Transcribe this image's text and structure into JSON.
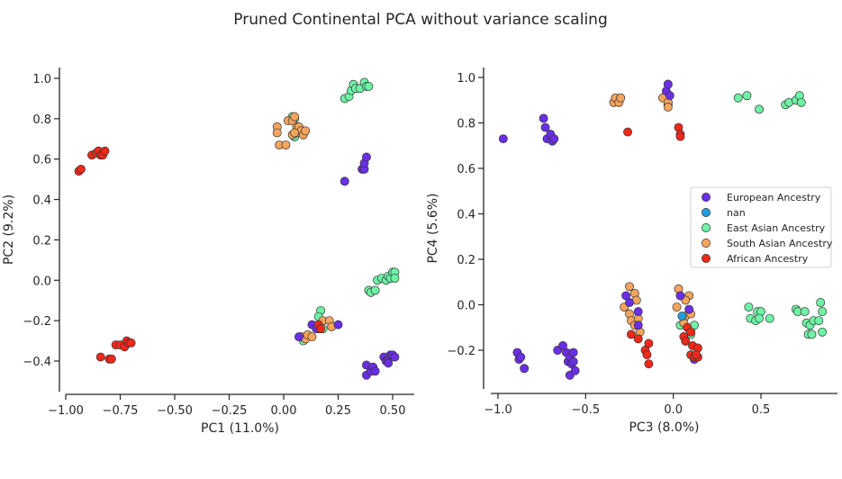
{
  "title": "Pruned Continental PCA without variance scaling",
  "colors": {
    "European Ancestry": "#6b2ee8",
    "nan": "#1fa0dd",
    "East Asian Ancestry": "#6ef2a6",
    "South Asian Ancestry": "#f6a45c",
    "African Ancestry": "#f0281a"
  },
  "legend": {
    "placement": "center-right of second panel",
    "entries": [
      "European Ancestry",
      "nan",
      "East Asian Ancestry",
      "South Asian Ancestry",
      "African Ancestry"
    ]
  },
  "chart_data": [
    {
      "type": "scatter",
      "xlabel": "PC1 (11.0%)",
      "ylabel": "PC2 (9.2%)",
      "xlim": [
        -1.03,
        0.6
      ],
      "ylim": [
        -0.55,
        1.05
      ],
      "xticks": [
        -1.0,
        -0.75,
        -0.5,
        -0.25,
        0.0,
        0.25,
        0.5
      ],
      "xtick_labels": [
        "−1.00",
        "−0.75",
        "−0.50",
        "−0.25",
        "0.00",
        "0.25",
        "0.50"
      ],
      "yticks": [
        -0.4,
        -0.2,
        0.0,
        0.2,
        0.4,
        0.6,
        0.8,
        1.0
      ],
      "ytick_labels": [
        "−0.4",
        "−0.2",
        "0.0",
        "0.2",
        "0.4",
        "0.6",
        "0.8",
        "1.0"
      ],
      "grid": false,
      "series": [
        {
          "name": "East Asian Ancestry",
          "points": [
            [
              0.28,
              0.9
            ],
            [
              0.3,
              0.91
            ],
            [
              0.31,
              0.94
            ],
            [
              0.32,
              0.97
            ],
            [
              0.33,
              0.95
            ],
            [
              0.35,
              0.95
            ],
            [
              0.37,
              0.98
            ],
            [
              0.38,
              0.96
            ],
            [
              0.39,
              0.96
            ],
            [
              0.04,
              0.81
            ],
            [
              0.05,
              0.8
            ],
            [
              0.05,
              0.71
            ],
            [
              0.39,
              -0.05
            ],
            [
              0.4,
              -0.06
            ],
            [
              0.42,
              -0.05
            ],
            [
              0.43,
              0.0
            ],
            [
              0.45,
              0.01
            ],
            [
              0.47,
              0.0
            ],
            [
              0.48,
              0.02
            ],
            [
              0.49,
              0.01
            ],
            [
              0.5,
              0.04
            ],
            [
              0.51,
              0.04
            ],
            [
              0.51,
              0.01
            ],
            [
              0.17,
              -0.15
            ],
            [
              0.16,
              -0.18
            ],
            [
              0.18,
              -0.24
            ],
            [
              0.09,
              -0.3
            ]
          ]
        },
        {
          "name": "South Asian Ancestry",
          "points": [
            [
              -0.03,
              0.76
            ],
            [
              -0.03,
              0.73
            ],
            [
              -0.02,
              0.67
            ],
            [
              0.01,
              0.67
            ],
            [
              0.02,
              0.79
            ],
            [
              0.04,
              0.79
            ],
            [
              0.05,
              0.81
            ],
            [
              0.06,
              0.76
            ],
            [
              0.06,
              0.73
            ],
            [
              0.07,
              0.76
            ],
            [
              0.08,
              0.74
            ],
            [
              0.09,
              0.72
            ],
            [
              0.1,
              0.74
            ],
            [
              0.04,
              0.72
            ],
            [
              0.05,
              0.73
            ],
            [
              0.08,
              -0.28
            ],
            [
              0.1,
              -0.29
            ],
            [
              0.11,
              -0.27
            ],
            [
              0.13,
              -0.28
            ],
            [
              0.18,
              -0.2
            ],
            [
              0.21,
              -0.2
            ],
            [
              0.22,
              -0.23
            ],
            [
              0.16,
              -0.24
            ]
          ]
        },
        {
          "name": "nan",
          "points": [
            [
              0.15,
              -0.23
            ]
          ]
        },
        {
          "name": "European Ancestry",
          "points": [
            [
              0.28,
              0.49
            ],
            [
              0.36,
              0.55
            ],
            [
              0.37,
              0.55
            ],
            [
              0.37,
              0.58
            ],
            [
              0.38,
              0.61
            ],
            [
              0.38,
              -0.42
            ],
            [
              0.38,
              -0.47
            ],
            [
              0.4,
              -0.45
            ],
            [
              0.41,
              -0.43
            ],
            [
              0.42,
              -0.45
            ],
            [
              0.46,
              -0.38
            ],
            [
              0.47,
              -0.4
            ],
            [
              0.48,
              -0.39
            ],
            [
              0.48,
              -0.41
            ],
            [
              0.49,
              -0.37
            ],
            [
              0.5,
              -0.37
            ],
            [
              0.51,
              -0.38
            ],
            [
              0.07,
              -0.28
            ],
            [
              0.13,
              -0.22
            ],
            [
              0.15,
              -0.24
            ],
            [
              0.25,
              -0.22
            ]
          ]
        },
        {
          "name": "African Ancestry",
          "points": [
            [
              -0.94,
              0.54
            ],
            [
              -0.93,
              0.55
            ],
            [
              -0.88,
              0.62
            ],
            [
              -0.86,
              0.63
            ],
            [
              -0.85,
              0.64
            ],
            [
              -0.84,
              0.62
            ],
            [
              -0.83,
              0.62
            ],
            [
              -0.82,
              0.64
            ],
            [
              -0.84,
              -0.38
            ],
            [
              -0.8,
              -0.39
            ],
            [
              -0.79,
              -0.39
            ],
            [
              -0.77,
              -0.32
            ],
            [
              -0.75,
              -0.32
            ],
            [
              -0.73,
              -0.33
            ],
            [
              -0.72,
              -0.3
            ],
            [
              -0.71,
              -0.31
            ],
            [
              -0.7,
              -0.31
            ],
            [
              0.16,
              -0.22
            ],
            [
              0.17,
              -0.24
            ]
          ]
        }
      ]
    },
    {
      "type": "scatter",
      "xlabel": "PC3 (8.0%)",
      "ylabel": "PC4 (5.6%)",
      "xlim": [
        -1.05,
        0.95
      ],
      "ylim": [
        -0.37,
        1.04
      ],
      "xticks": [
        -1.0,
        -0.5,
        0.0,
        0.5
      ],
      "xtick_labels": [
        "−1.0",
        "−0.5",
        "0.0",
        "0.5"
      ],
      "yticks": [
        -0.2,
        0.0,
        0.2,
        0.4,
        0.6,
        0.8,
        1.0
      ],
      "ytick_labels": [
        "−0.2",
        "0.0",
        "0.2",
        "0.4",
        "0.6",
        "0.8",
        "1.0"
      ],
      "grid": false,
      "series": [
        {
          "name": "East Asian Ancestry",
          "points": [
            [
              0.37,
              0.91
            ],
            [
              0.42,
              0.92
            ],
            [
              0.49,
              0.86
            ],
            [
              0.64,
              0.88
            ],
            [
              0.66,
              0.89
            ],
            [
              0.7,
              0.9
            ],
            [
              0.72,
              0.92
            ],
            [
              0.73,
              0.89
            ],
            [
              -0.03,
              0.88
            ],
            [
              0.43,
              -0.01
            ],
            [
              0.44,
              -0.06
            ],
            [
              0.47,
              -0.07
            ],
            [
              0.48,
              -0.03
            ],
            [
              0.5,
              -0.03
            ],
            [
              0.49,
              -0.06
            ],
            [
              0.55,
              -0.06
            ],
            [
              0.7,
              -0.02
            ],
            [
              0.71,
              -0.03
            ],
            [
              0.75,
              -0.03
            ],
            [
              0.76,
              -0.08
            ],
            [
              0.78,
              -0.09
            ],
            [
              0.8,
              -0.07
            ],
            [
              0.83,
              -0.07
            ],
            [
              0.84,
              0.01
            ],
            [
              0.85,
              -0.03
            ],
            [
              0.85,
              -0.12
            ],
            [
              0.77,
              -0.13
            ],
            [
              0.79,
              -0.13
            ],
            [
              0.04,
              -0.09
            ],
            [
              0.12,
              -0.09
            ],
            [
              0.1,
              -0.13
            ]
          ]
        },
        {
          "name": "South Asian Ancestry",
          "points": [
            [
              -0.34,
              0.89
            ],
            [
              -0.33,
              0.91
            ],
            [
              -0.31,
              0.89
            ],
            [
              -0.3,
              0.91
            ],
            [
              -0.06,
              0.91
            ],
            [
              -0.03,
              0.97
            ],
            [
              -0.03,
              0.89
            ],
            [
              -0.03,
              0.87
            ],
            [
              -0.25,
              0.08
            ],
            [
              -0.22,
              0.05
            ],
            [
              -0.21,
              0.02
            ],
            [
              -0.28,
              -0.01
            ],
            [
              -0.25,
              -0.04
            ],
            [
              -0.24,
              -0.07
            ],
            [
              -0.22,
              -0.09
            ],
            [
              -0.2,
              -0.06
            ],
            [
              -0.19,
              -0.12
            ],
            [
              0.03,
              0.07
            ],
            [
              0.09,
              0.04
            ],
            [
              0.07,
              0.02
            ],
            [
              0.02,
              -0.01
            ],
            [
              0.07,
              -0.05
            ],
            [
              0.1,
              -0.04
            ],
            [
              0.06,
              -0.08
            ]
          ]
        },
        {
          "name": "nan",
          "points": [
            [
              0.05,
              -0.05
            ]
          ]
        },
        {
          "name": "European Ancestry",
          "points": [
            [
              -0.97,
              0.73
            ],
            [
              -0.74,
              0.82
            ],
            [
              -0.73,
              0.78
            ],
            [
              -0.72,
              0.73
            ],
            [
              -0.7,
              0.75
            ],
            [
              -0.69,
              0.72
            ],
            [
              -0.68,
              0.73
            ],
            [
              -0.04,
              0.94
            ],
            [
              -0.03,
              0.97
            ],
            [
              -0.02,
              0.92
            ],
            [
              -0.89,
              -0.21
            ],
            [
              -0.88,
              -0.24
            ],
            [
              -0.87,
              -0.23
            ],
            [
              -0.85,
              -0.28
            ],
            [
              -0.66,
              -0.2
            ],
            [
              -0.63,
              -0.18
            ],
            [
              -0.61,
              -0.21
            ],
            [
              -0.6,
              -0.25
            ],
            [
              -0.59,
              -0.23
            ],
            [
              -0.58,
              -0.26
            ],
            [
              -0.57,
              -0.21
            ],
            [
              -0.57,
              -0.25
            ],
            [
              -0.59,
              -0.31
            ],
            [
              -0.56,
              -0.29
            ],
            [
              -0.27,
              0.04
            ],
            [
              -0.25,
              0.01
            ],
            [
              -0.2,
              -0.03
            ],
            [
              -0.2,
              -0.09
            ],
            [
              0.04,
              0.04
            ],
            [
              0.09,
              -0.02
            ],
            [
              0.12,
              -0.24
            ]
          ]
        },
        {
          "name": "African Ancestry",
          "points": [
            [
              -0.26,
              0.76
            ],
            [
              0.03,
              0.78
            ],
            [
              0.04,
              0.75
            ],
            [
              0.04,
              0.74
            ],
            [
              -0.24,
              -0.13
            ],
            [
              -0.2,
              -0.15
            ],
            [
              -0.16,
              -0.2
            ],
            [
              -0.15,
              -0.22
            ],
            [
              -0.14,
              -0.17
            ],
            [
              -0.14,
              -0.26
            ],
            [
              0.06,
              -0.14
            ],
            [
              0.08,
              -0.1
            ],
            [
              0.07,
              -0.16
            ],
            [
              0.1,
              -0.12
            ],
            [
              0.11,
              -0.18
            ],
            [
              0.14,
              -0.19
            ],
            [
              0.1,
              -0.22
            ],
            [
              0.12,
              -0.23
            ],
            [
              0.14,
              -0.23
            ],
            [
              0.13,
              -0.22
            ]
          ]
        }
      ]
    }
  ]
}
